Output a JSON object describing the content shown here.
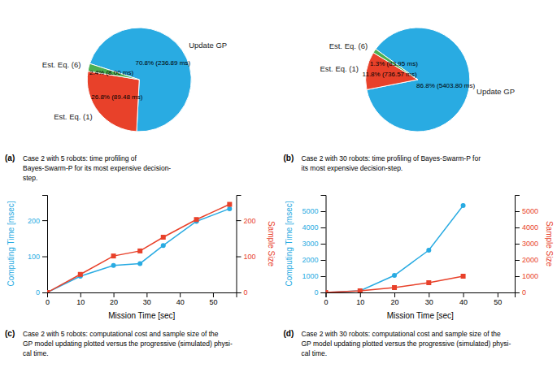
{
  "chart_data": [
    {
      "type": "pie",
      "title": "(a)",
      "annotations": [
        "Case 2 with 5 robots: time profiling of",
        "Bayes-Swarm-P for its most expensive decision-",
        "step."
      ],
      "categories": [
        "Update GP",
        "Est. Eq. (1)",
        "Est. Eq. (6)"
      ],
      "values": [
        70.8,
        26.8,
        2.4
      ],
      "value_labels": [
        "70.8% (236.89 ms)",
        "26.8% (89.48 ms)",
        "2.4% (8.00 ms)"
      ],
      "colors": [
        "#29ABE2",
        "#E8412A",
        "#4CAF50"
      ],
      "data_labels": true
    },
    {
      "type": "pie",
      "title": "(b)",
      "annotations": [
        "Case 2 with 30 robots: time profiling of Bayes-Swarm-P for",
        "its most expensive decision-step."
      ],
      "categories": [
        "Update GP",
        "Est. Eq. (1)",
        "Est. Eq. (6)"
      ],
      "values": [
        86.8,
        11.8,
        1.3
      ],
      "value_labels": [
        "86.8% (5403.80 ms)",
        "11.8% (736.57 ms)",
        "1.3% (83.95 ms)"
      ],
      "colors": [
        "#29ABE2",
        "#E8412A",
        "#4CAF50"
      ],
      "data_labels": true
    },
    {
      "type": "line",
      "title": "(c)",
      "annotations": [
        "Case 2 with 5 robots: computational cost and sample size of the",
        "GP model updating plotted versus the progressive (simulated) physi-",
        "cal time."
      ],
      "x": [
        0,
        10,
        20,
        28,
        35,
        45,
        55
      ],
      "series": [
        {
          "color": "#29ABE2",
          "marker": "circle",
          "values": [
            0,
            45,
            75,
            80,
            130,
            197,
            232
          ]
        },
        {
          "color": "#E8412A",
          "marker": "square",
          "axis": "y2",
          "values": [
            0,
            50,
            101,
            115,
            153,
            202,
            244
          ]
        }
      ],
      "xlabel": "Mission Time [sec]",
      "ylabel": "Computing Time [msec]",
      "y2label": "Sample Size",
      "xlim": [
        0,
        57
      ],
      "xticks": [
        0,
        10,
        20,
        30,
        40,
        50
      ],
      "ylim": [
        0,
        270
      ],
      "yticks": [
        0,
        100,
        200
      ],
      "y2lim": [
        0,
        270
      ],
      "y2ticks": [
        0,
        100,
        200
      ]
    },
    {
      "type": "line",
      "title": "(d)",
      "annotations": [
        "Case 2 with 30 robots: computational cost and sample size of the",
        "GP model updating plotted versus the progressive (simulated) physi-",
        "cal time."
      ],
      "x": [
        0,
        10,
        20,
        30,
        40
      ],
      "series": [
        {
          "color": "#29ABE2",
          "marker": "circle",
          "values": [
            0,
            100,
            1050,
            2600,
            5350
          ]
        },
        {
          "color": "#E8412A",
          "marker": "square",
          "axis": "y2",
          "values": [
            0,
            100,
            300,
            600,
            1000
          ]
        }
      ],
      "xlabel": "Mission Time [sec]",
      "ylabel": "Computing Time [msec]",
      "y2label": "Sample Size",
      "xlim": [
        0,
        55
      ],
      "xticks": [
        0,
        10,
        20,
        30,
        40,
        50
      ],
      "ylim": [
        0,
        6000
      ],
      "yticks": [
        0,
        1000,
        2000,
        3000,
        4000,
        5000
      ],
      "y2lim": [
        0,
        6000
      ],
      "y2ticks": [
        0,
        1000,
        2000,
        3000,
        4000,
        5000
      ]
    }
  ]
}
